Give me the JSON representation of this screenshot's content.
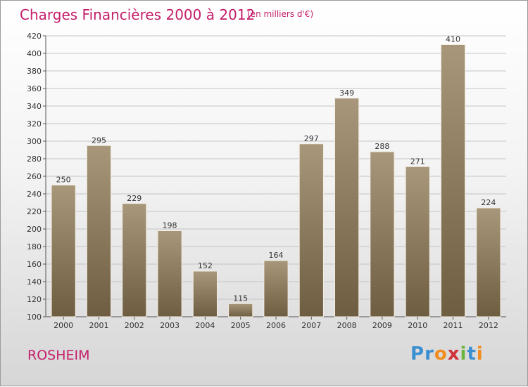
{
  "title": "Charges Financières 2000 à 2012",
  "subtitle": "(en milliers d'€)",
  "city": "ROSHEIM",
  "logo": {
    "text": "Proxiti",
    "letters": [
      "P",
      "r",
      "o",
      "x",
      "i",
      "t",
      "i"
    ],
    "colors": [
      "#3a8fd0",
      "#3a8fd0",
      "#f28c1e",
      "#d2303a",
      "#6db43e",
      "#3a8fd0",
      "#f28c1e"
    ]
  },
  "colors": {
    "bar": "#8d7a5b",
    "title": "#c41e6a"
  },
  "chart_data": {
    "type": "bar",
    "categories": [
      "2000",
      "2001",
      "2002",
      "2003",
      "2004",
      "2005",
      "2006",
      "2007",
      "2008",
      "2009",
      "2010",
      "2011",
      "2012"
    ],
    "values": [
      250,
      295,
      229,
      198,
      152,
      115,
      164,
      297,
      349,
      288,
      271,
      410,
      224
    ],
    "ylim": [
      100,
      420
    ],
    "yticks": [
      100,
      120,
      140,
      160,
      180,
      200,
      220,
      240,
      260,
      280,
      300,
      320,
      340,
      360,
      380,
      400,
      420
    ],
    "grid": true,
    "xlabel": "",
    "ylabel": ""
  }
}
